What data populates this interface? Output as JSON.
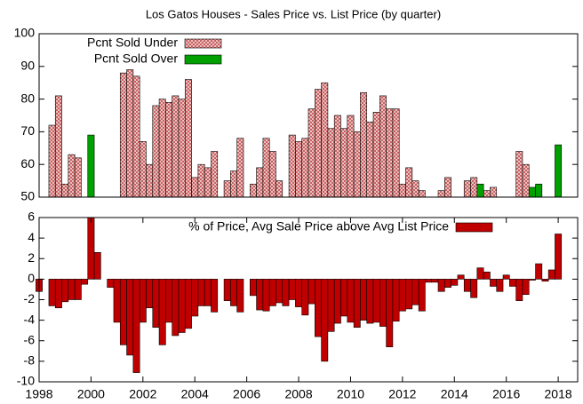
{
  "chart_data": [
    {
      "type": "bar",
      "title": "Los Gatos Houses - Sales Price vs. List Price (by quarter)",
      "x": [
        1998,
        1998.25,
        1998.5,
        1998.75,
        1999,
        1999.25,
        1999.5,
        1999.75,
        2000,
        2000.25,
        2000.5,
        2000.75,
        2001,
        2001.25,
        2001.5,
        2001.75,
        2002,
        2002.25,
        2002.5,
        2002.75,
        2003,
        2003.25,
        2003.5,
        2003.75,
        2004,
        2004.25,
        2004.5,
        2004.75,
        2005,
        2005.25,
        2005.5,
        2005.75,
        2006,
        2006.25,
        2006.5,
        2006.75,
        2007,
        2007.25,
        2007.5,
        2007.75,
        2008,
        2008.25,
        2008.5,
        2008.75,
        2009,
        2009.25,
        2009.5,
        2009.75,
        2010,
        2010.25,
        2010.5,
        2010.75,
        2011,
        2011.25,
        2011.5,
        2011.75,
        2012,
        2012.25,
        2012.5,
        2012.75,
        2013,
        2013.25,
        2013.5,
        2013.75,
        2014,
        2014.25,
        2014.5,
        2014.75,
        2015,
        2015.25,
        2015.5,
        2015.75,
        2016,
        2016.25,
        2016.5,
        2016.75,
        2017,
        2017.25,
        2017.5,
        2017.75,
        2018
      ],
      "series": [
        {
          "name": "Pcnt Sold Under",
          "color": "#c04848",
          "pattern": "crosshatch",
          "values": [
            null,
            null,
            72,
            81,
            54,
            63,
            62,
            null,
            null,
            null,
            null,
            null,
            null,
            88,
            89,
            87,
            67,
            60,
            78,
            80,
            79,
            81,
            80,
            86,
            56,
            60,
            59,
            64,
            null,
            55,
            58,
            68,
            null,
            54,
            59,
            68,
            64,
            55,
            null,
            69,
            67,
            68,
            77,
            83,
            85,
            71,
            75,
            71,
            75,
            70,
            82,
            73,
            76,
            81,
            77,
            77,
            54,
            59,
            55,
            52,
            null,
            null,
            52,
            56,
            null,
            null,
            55,
            56,
            null,
            52,
            53,
            null,
            null,
            null,
            64,
            60,
            null,
            null,
            null,
            null,
            null
          ]
        },
        {
          "name": "Pcnt Sold Over",
          "color": "#00a000",
          "values": [
            null,
            null,
            null,
            null,
            null,
            null,
            null,
            null,
            69,
            null,
            null,
            null,
            null,
            null,
            null,
            null,
            null,
            null,
            null,
            null,
            null,
            null,
            null,
            null,
            null,
            null,
            null,
            null,
            null,
            null,
            null,
            null,
            null,
            null,
            null,
            null,
            null,
            null,
            null,
            null,
            null,
            null,
            null,
            null,
            null,
            null,
            null,
            null,
            null,
            null,
            null,
            null,
            null,
            null,
            null,
            null,
            null,
            null,
            null,
            null,
            null,
            null,
            null,
            null,
            null,
            null,
            null,
            null,
            54,
            null,
            null,
            null,
            null,
            null,
            null,
            null,
            53,
            54,
            null,
            null,
            66
          ]
        }
      ],
      "xlim": [
        1998,
        2018.75
      ],
      "ylim": [
        50,
        100
      ],
      "yticks": [
        50,
        60,
        70,
        80,
        90,
        100
      ],
      "legend": "top-left"
    },
    {
      "type": "bar",
      "x": [
        1998,
        1998.25,
        1998.5,
        1998.75,
        1999,
        1999.25,
        1999.5,
        1999.75,
        2000,
        2000.25,
        2000.5,
        2000.75,
        2001,
        2001.25,
        2001.5,
        2001.75,
        2002,
        2002.25,
        2002.5,
        2002.75,
        2003,
        2003.25,
        2003.5,
        2003.75,
        2004,
        2004.25,
        2004.5,
        2004.75,
        2005,
        2005.25,
        2005.5,
        2005.75,
        2006,
        2006.25,
        2006.5,
        2006.75,
        2007,
        2007.25,
        2007.5,
        2007.75,
        2008,
        2008.25,
        2008.5,
        2008.75,
        2009,
        2009.25,
        2009.5,
        2009.75,
        2010,
        2010.25,
        2010.5,
        2010.75,
        2011,
        2011.25,
        2011.5,
        2011.75,
        2012,
        2012.25,
        2012.5,
        2012.75,
        2013,
        2013.25,
        2013.5,
        2013.75,
        2014,
        2014.25,
        2014.5,
        2014.75,
        2015,
        2015.25,
        2015.5,
        2015.75,
        2016,
        2016.25,
        2016.5,
        2016.75,
        2017,
        2017.25,
        2017.5,
        2017.75,
        2018
      ],
      "series": [
        {
          "name": "% of Price, Avg Sale Price above Avg List Price",
          "color": "#c00000",
          "values": [
            -1.2,
            null,
            -2.6,
            -2.8,
            -2.2,
            -2.0,
            -2.0,
            -0.5,
            6,
            2.6,
            null,
            -0.8,
            -4.2,
            -6.4,
            -7.4,
            -9.1,
            -4.2,
            -2.8,
            -4.7,
            -6.4,
            -4.2,
            -5.5,
            -5.2,
            -4.8,
            -3.6,
            -2.6,
            -2.6,
            -3.2,
            null,
            -2.1,
            -2.6,
            -3.2,
            null,
            -1.6,
            -3.0,
            -3.1,
            -2.6,
            -2.3,
            -2.6,
            -2.0,
            -2.7,
            -3.5,
            -2.4,
            -5.6,
            -8.0,
            -5.1,
            -4.3,
            -3.6,
            -4.2,
            -4.7,
            -4.0,
            -4.3,
            -4.2,
            -4.6,
            -6.6,
            -4.1,
            -3.1,
            -2.9,
            -2.5,
            -3.1,
            -0.3,
            -0.3,
            -1.2,
            -0.8,
            -0.6,
            0.4,
            -1.2,
            -1.8,
            1.1,
            0.7,
            -0.7,
            -1.2,
            0.4,
            -0.7,
            -2.1,
            -1.5,
            -0.1,
            1.5,
            -0.2,
            0.9,
            4.4
          ]
        }
      ],
      "xlim": [
        1998,
        2018.75
      ],
      "xticks": [
        1998,
        2000,
        2002,
        2004,
        2006,
        2008,
        2010,
        2012,
        2014,
        2016,
        2018
      ],
      "ylim": [
        -10,
        6
      ],
      "yticks": [
        -10,
        -8,
        -6,
        -4,
        -2,
        0,
        2,
        4,
        6
      ],
      "legend": "top-right"
    }
  ]
}
